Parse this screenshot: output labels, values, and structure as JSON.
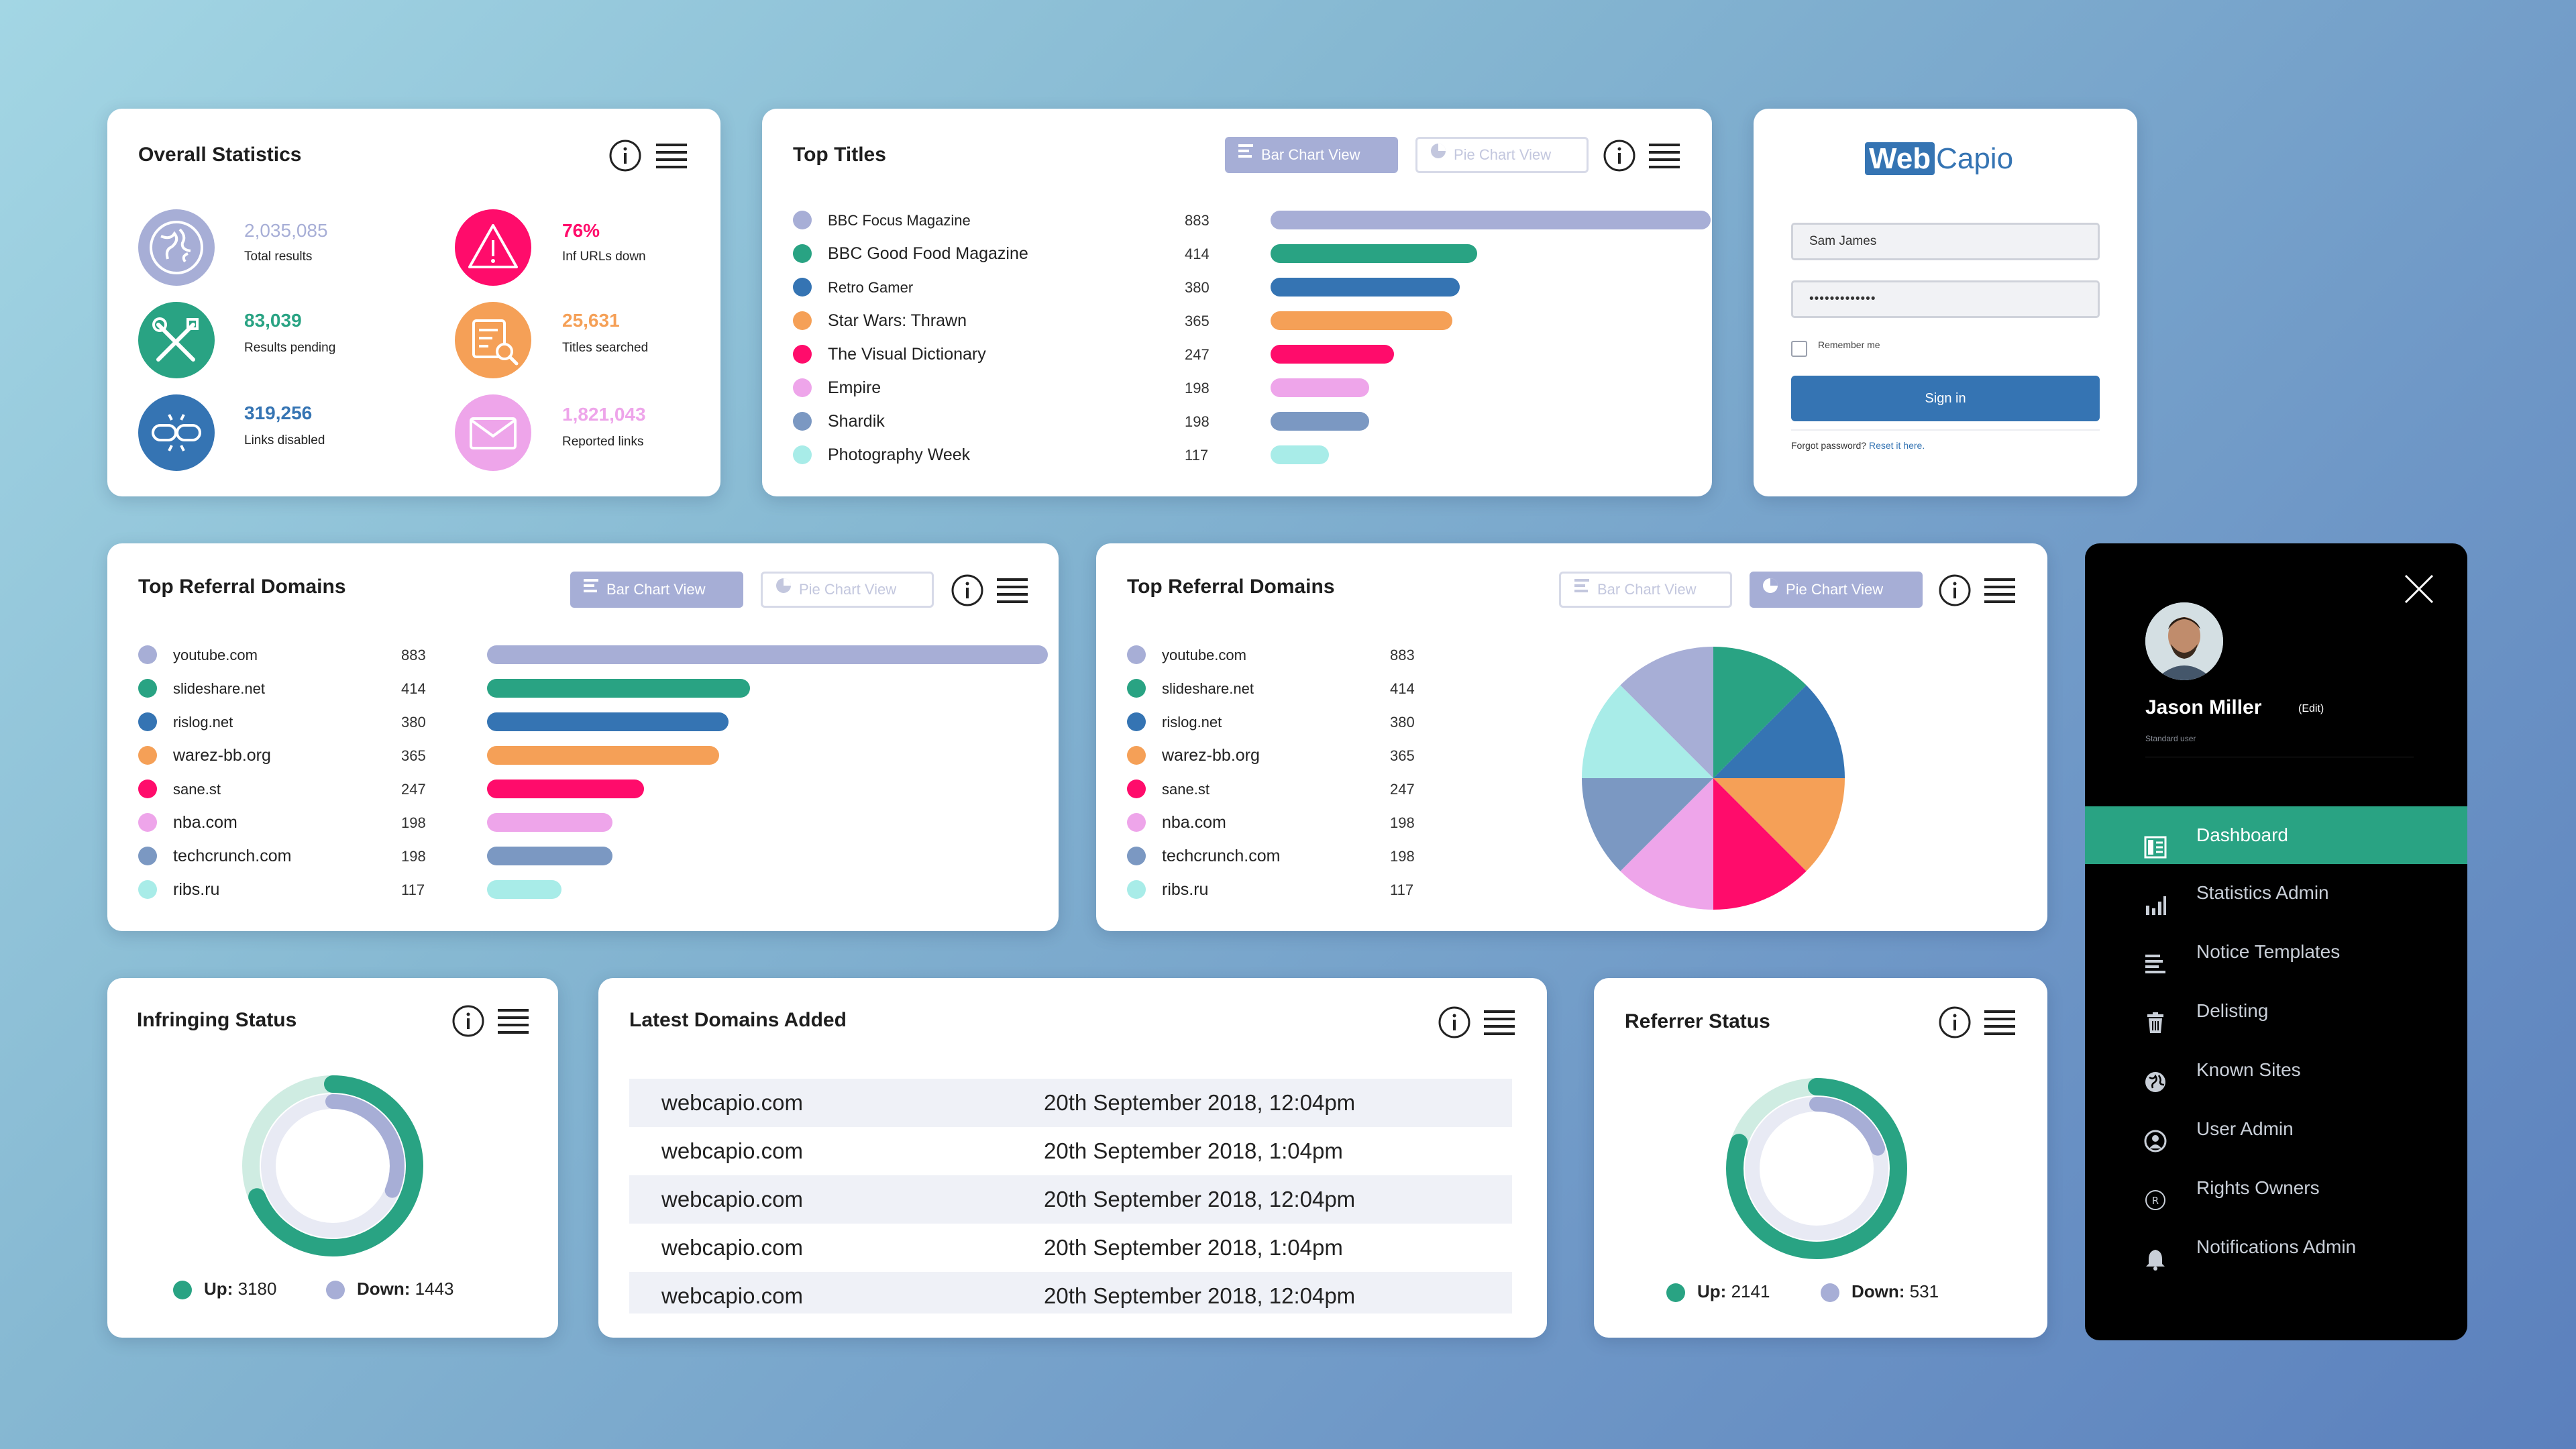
{
  "colors": {
    "lavender": "#a7aed6",
    "green": "#29a383",
    "blue": "#3574b3",
    "orange": "#f5a057",
    "pink": "#ff0c6b",
    "lilac": "#eea5ea",
    "slate": "#7b98c2",
    "aqua": "#a8ece8"
  },
  "overall": {
    "title": "Overall Statistics",
    "stats": [
      {
        "value": "2,035,085",
        "label": "Total results",
        "icon": "globe-icon"
      },
      {
        "value": "76%",
        "label": "Inf URLs down",
        "icon": "warning-icon"
      },
      {
        "value": "83,039",
        "label": "Results pending",
        "icon": "tools-icon"
      },
      {
        "value": "25,631",
        "label": "Titles searched",
        "icon": "search-list-icon"
      },
      {
        "value": "319,256",
        "label": "Links disabled",
        "icon": "broken-link-icon"
      },
      {
        "value": "1,821,043",
        "label": "Reported links",
        "icon": "envelope-icon"
      }
    ]
  },
  "view_toggle": {
    "bar": "Bar Chart View",
    "pie": "Pie Chart View"
  },
  "top_titles": {
    "title": "Top Titles",
    "items": [
      {
        "label": "BBC Focus Magazine",
        "value": 883
      },
      {
        "label": "BBC Good Food Magazine",
        "value": 414
      },
      {
        "label": "Retro Gamer",
        "value": 380
      },
      {
        "label": "Star Wars: Thrawn",
        "value": 365
      },
      {
        "label": "The Visual Dictionary",
        "value": 247
      },
      {
        "label": "Empire",
        "value": 198
      },
      {
        "label": "Shardik",
        "value": 198
      },
      {
        "label": "Photography Week",
        "value": 117
      }
    ]
  },
  "login": {
    "logo_a": "Web",
    "logo_b": "Capio",
    "username": "Sam James",
    "password": "•••••••••••••",
    "remember": "Remember me",
    "signin": "Sign in",
    "forgot": "Forgot password?",
    "reset": "Reset it here."
  },
  "referral_bar": {
    "title": "Top Referral Domains",
    "items": [
      {
        "label": "youtube.com",
        "value": 883
      },
      {
        "label": "slideshare.net",
        "value": 414
      },
      {
        "label": "rislog.net",
        "value": 380
      },
      {
        "label": "warez-bb.org",
        "value": 365
      },
      {
        "label": "sane.st",
        "value": 247
      },
      {
        "label": "nba.com",
        "value": 198
      },
      {
        "label": "techcrunch.com",
        "value": 198
      },
      {
        "label": "ribs.ru",
        "value": 117
      }
    ]
  },
  "referral_pie": {
    "title": "Top Referral Domains",
    "items": [
      {
        "label": "youtube.com",
        "value": 883
      },
      {
        "label": "slideshare.net",
        "value": 414
      },
      {
        "label": "rislog.net",
        "value": 380
      },
      {
        "label": "warez-bb.org",
        "value": 365
      },
      {
        "label": "sane.st",
        "value": 247
      },
      {
        "label": "nba.com",
        "value": 198
      },
      {
        "label": "techcrunch.com",
        "value": 198
      },
      {
        "label": "ribs.ru",
        "value": 117
      }
    ]
  },
  "infringing": {
    "title": "Infringing Status",
    "up_label": "Up:",
    "up": 3180,
    "down_label": "Down:",
    "down": 1443
  },
  "latest": {
    "title": "Latest Domains Added",
    "rows": [
      {
        "domain": "webcapio.com",
        "date": "20th September 2018, 12:04pm"
      },
      {
        "domain": "webcapio.com",
        "date": "20th September 2018, 1:04pm"
      },
      {
        "domain": "webcapio.com",
        "date": "20th September 2018, 12:04pm"
      },
      {
        "domain": "webcapio.com",
        "date": "20th September 2018, 1:04pm"
      },
      {
        "domain": "webcapio.com",
        "date": "20th September 2018, 12:04pm"
      }
    ]
  },
  "referrer": {
    "title": "Referrer Status",
    "up_label": "Up:",
    "up": 2141,
    "down_label": "Down:",
    "down": 531
  },
  "sidebar": {
    "user_name": "Jason Miller",
    "edit": "(Edit)",
    "role": "Standard user",
    "items": [
      {
        "label": "Dashboard",
        "icon": "dashboard-icon",
        "active": true
      },
      {
        "label": "Statistics Admin",
        "icon": "bar-chart-icon"
      },
      {
        "label": "Notice Templates",
        "icon": "lines-icon"
      },
      {
        "label": "Delisting",
        "icon": "trash-icon"
      },
      {
        "label": "Known Sites",
        "icon": "globe-icon"
      },
      {
        "label": "User Admin",
        "icon": "user-icon"
      },
      {
        "label": "Rights Owners",
        "icon": "registered-icon"
      },
      {
        "label": "Notifications Admin",
        "icon": "bell-icon"
      }
    ]
  }
}
